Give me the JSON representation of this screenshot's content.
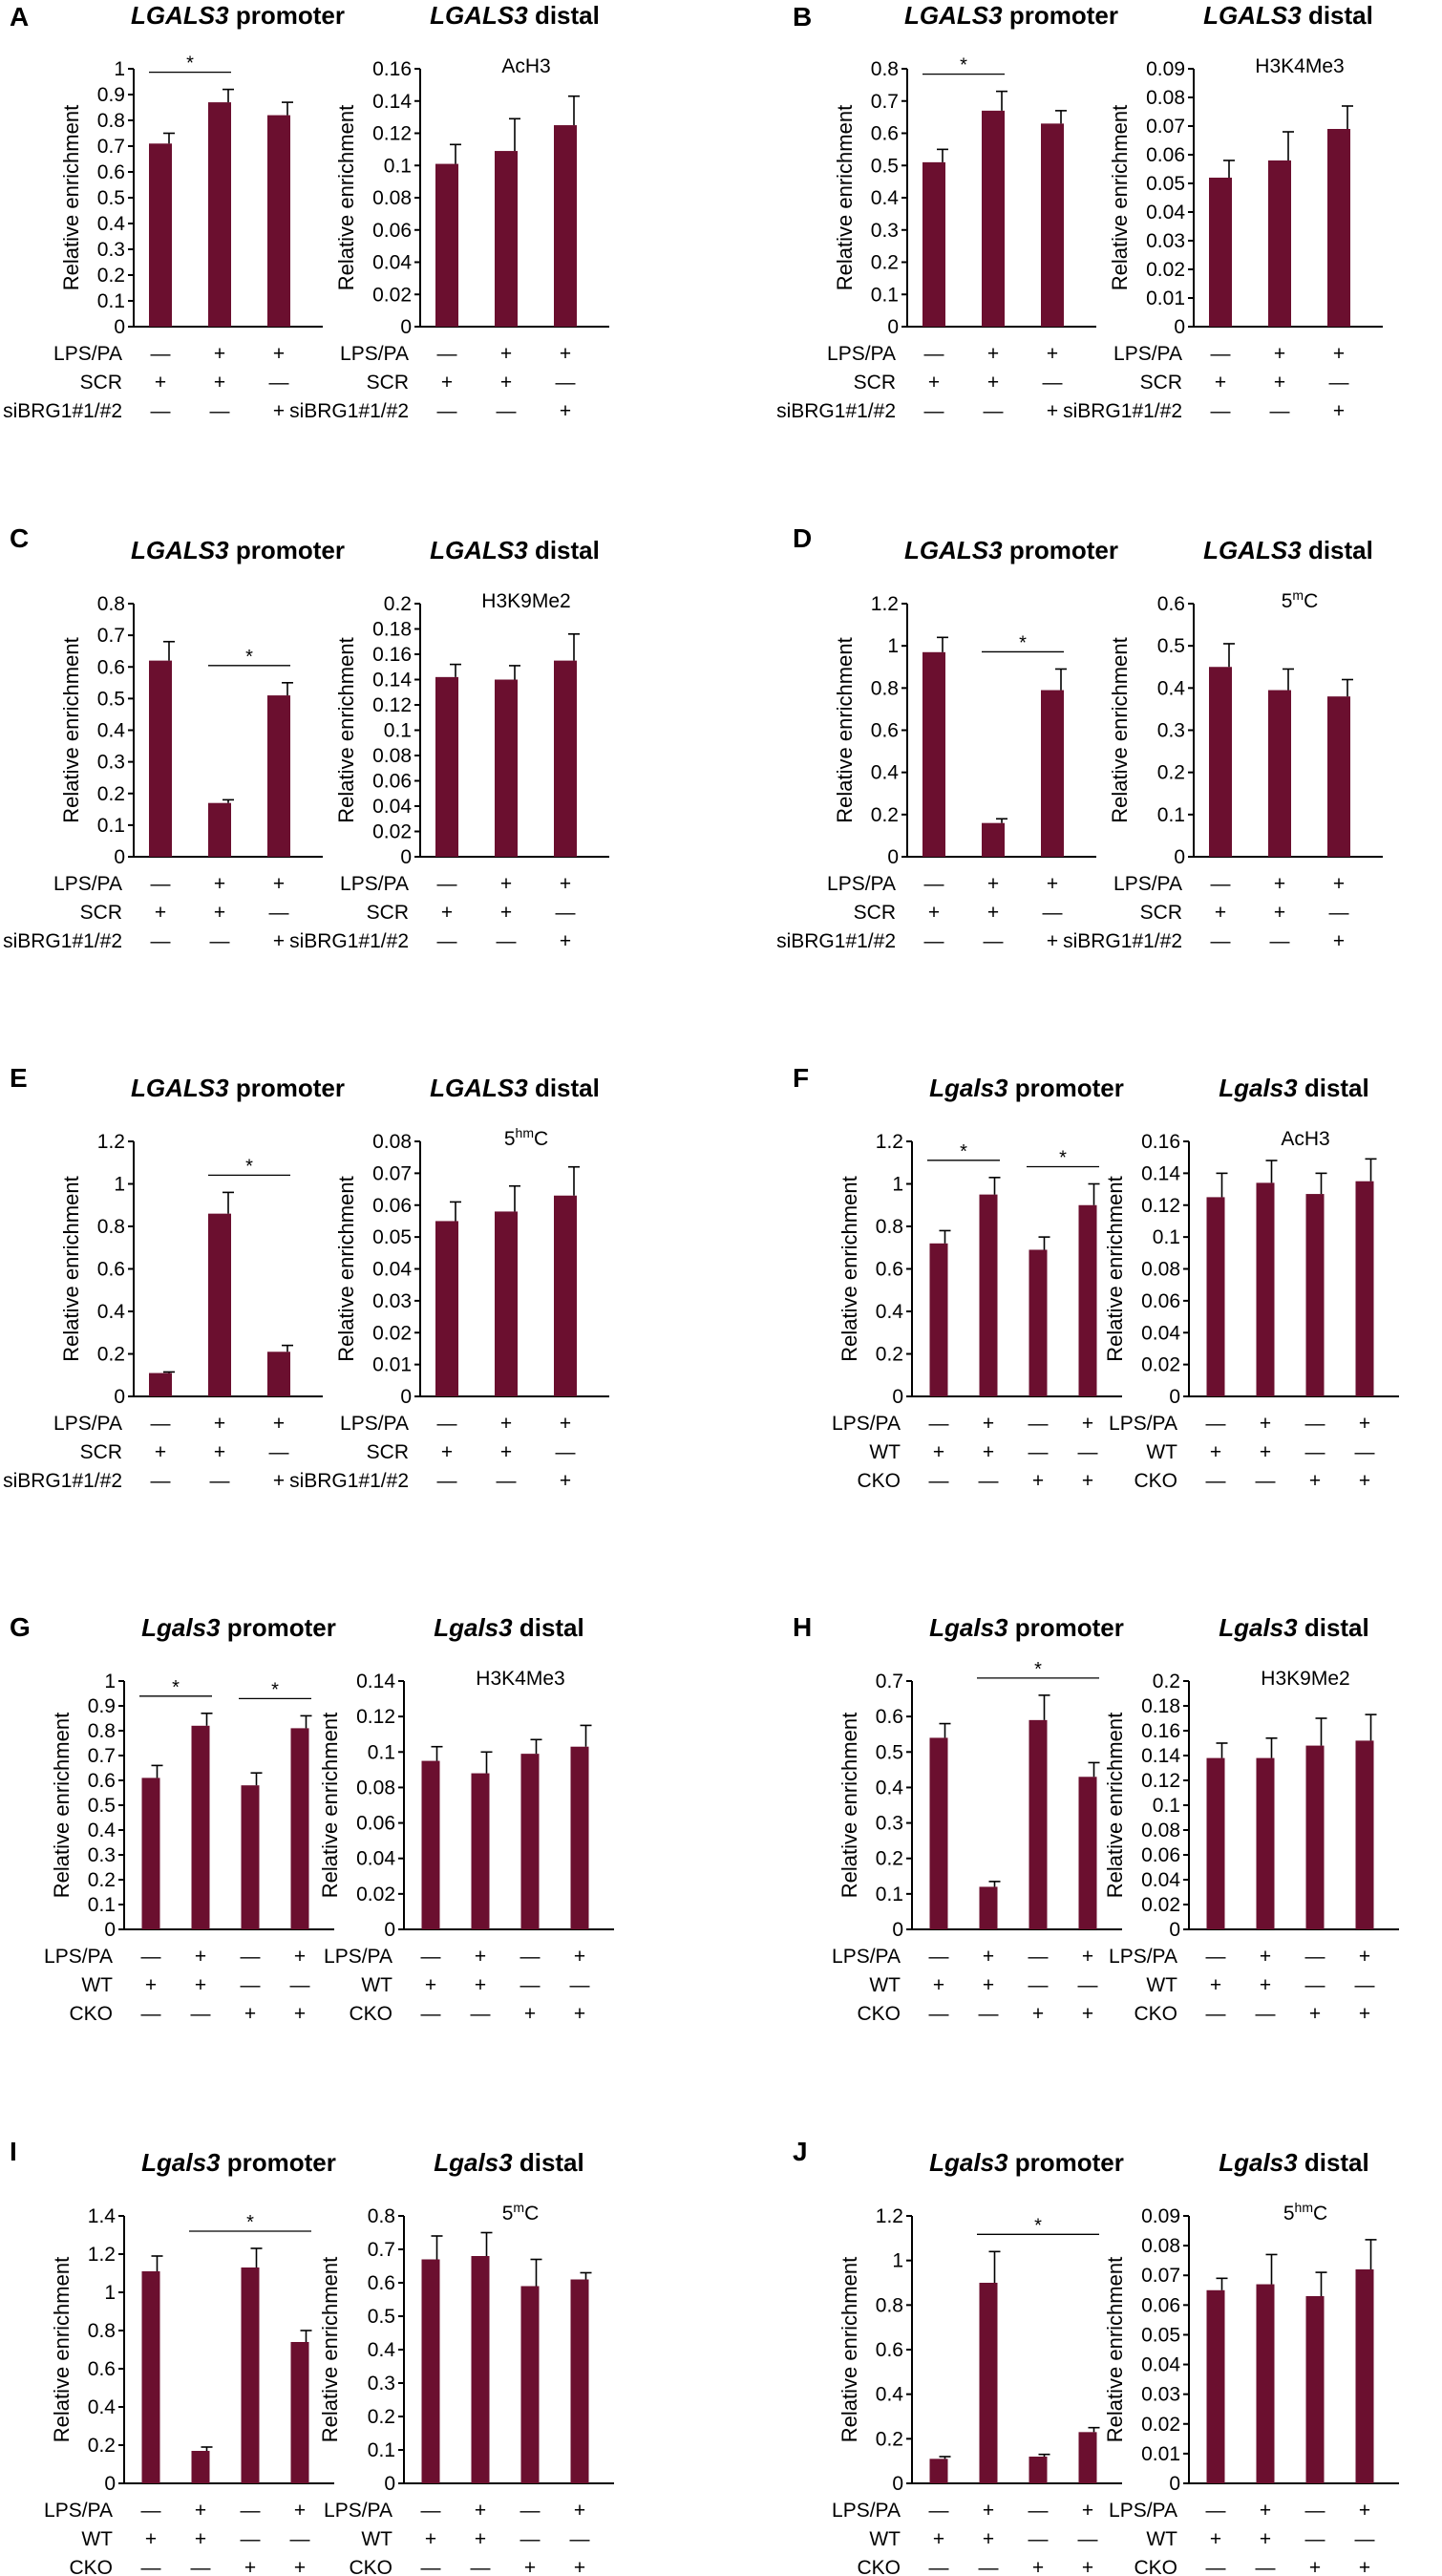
{
  "colors": {
    "bar": "#6b0f2f",
    "axis": "#000000"
  },
  "conditions": {
    "three": {
      "rows": [
        "LPS/PA",
        "SCR",
        "siBRG1#1/#2"
      ],
      "marks": [
        [
          "—",
          "+",
          "+"
        ],
        [
          "+",
          "+",
          "—"
        ],
        [
          "—",
          "—",
          "+"
        ]
      ]
    },
    "four": {
      "rows": [
        "LPS/PA",
        "WT",
        "CKO"
      ],
      "marks": [
        [
          "—",
          "+",
          "—",
          "+"
        ],
        [
          "+",
          "+",
          "—",
          "—"
        ],
        [
          "—",
          "—",
          "+",
          "+"
        ]
      ]
    }
  },
  "chart_data": [
    {
      "panel": "A",
      "type": "bar",
      "gene": "LGALS3",
      "region": "promoter",
      "ylabel": "Relative enrichment",
      "conditions": "three",
      "values": [
        0.71,
        0.87,
        0.82
      ],
      "errors": [
        0.04,
        0.05,
        0.05
      ],
      "ylim": [
        0,
        1
      ],
      "yticks": [
        "0",
        "0.1",
        "0.2",
        "0.3",
        "0.4",
        "0.5",
        "0.6",
        "0.7",
        "0.8",
        "0.9",
        "1"
      ],
      "sig": [
        [
          0,
          1
        ]
      ]
    },
    {
      "panel": "",
      "type": "bar",
      "gene": "LGALS3",
      "region": "distal",
      "ylabel": "Relative enrichment",
      "annotation": "AcH3",
      "conditions": "three",
      "values": [
        0.101,
        0.109,
        0.125
      ],
      "errors": [
        0.012,
        0.02,
        0.018
      ],
      "ylim": [
        0,
        0.16
      ],
      "yticks": [
        "0",
        "0.02",
        "0.04",
        "0.06",
        "0.08",
        "0.1",
        "0.12",
        "0.14",
        "0.16"
      ],
      "sig": []
    },
    {
      "panel": "B",
      "type": "bar",
      "gene": "LGALS3",
      "region": "promoter",
      "ylabel": "Relative enrichment",
      "conditions": "three",
      "values": [
        0.51,
        0.67,
        0.63
      ],
      "errors": [
        0.04,
        0.06,
        0.04
      ],
      "ylim": [
        0,
        0.8
      ],
      "yticks": [
        "0",
        "0.1",
        "0.2",
        "0.3",
        "0.4",
        "0.5",
        "0.6",
        "0.7",
        "0.8"
      ],
      "sig": [
        [
          0,
          1
        ]
      ]
    },
    {
      "panel": "",
      "type": "bar",
      "gene": "LGALS3",
      "region": "distal",
      "ylabel": "Relative enrichment",
      "annotation": "H3K4Me3",
      "conditions": "three",
      "values": [
        0.052,
        0.058,
        0.069
      ],
      "errors": [
        0.006,
        0.01,
        0.008
      ],
      "ylim": [
        0,
        0.09
      ],
      "yticks": [
        "0",
        "0.01",
        "0.02",
        "0.03",
        "0.04",
        "0.05",
        "0.06",
        "0.07",
        "0.08",
        "0.09"
      ],
      "sig": []
    },
    {
      "panel": "C",
      "type": "bar",
      "gene": "LGALS3",
      "region": "promoter",
      "ylabel": "Relative enrichment",
      "conditions": "three",
      "values": [
        0.62,
        0.17,
        0.51
      ],
      "errors": [
        0.06,
        0.01,
        0.04
      ],
      "ylim": [
        0,
        0.8
      ],
      "yticks": [
        "0",
        "0.1",
        "0.2",
        "0.3",
        "0.4",
        "0.5",
        "0.6",
        "0.7",
        "0.8"
      ],
      "sig": [
        [
          1,
          2
        ]
      ]
    },
    {
      "panel": "",
      "type": "bar",
      "gene": "LGALS3",
      "region": "distal",
      "ylabel": "Relative enrichment",
      "annotation": "H3K9Me2",
      "conditions": "three",
      "values": [
        0.142,
        0.14,
        0.155
      ],
      "errors": [
        0.01,
        0.011,
        0.021
      ],
      "ylim": [
        0,
        0.2
      ],
      "yticks": [
        "0",
        "0.02",
        "0.04",
        "0.06",
        "0.08",
        "0.1",
        "0.12",
        "0.14",
        "0.16",
        "0.18",
        "0.2"
      ],
      "sig": []
    },
    {
      "panel": "D",
      "type": "bar",
      "gene": "LGALS3",
      "region": "promoter",
      "ylabel": "Relative enrichment",
      "conditions": "three",
      "values": [
        0.97,
        0.16,
        0.79
      ],
      "errors": [
        0.07,
        0.02,
        0.1
      ],
      "ylim": [
        0,
        1.2
      ],
      "yticks": [
        "0",
        "0.2",
        "0.4",
        "0.6",
        "0.8",
        "1",
        "1.2"
      ],
      "sig": [
        [
          1,
          2
        ]
      ]
    },
    {
      "panel": "",
      "type": "bar",
      "gene": "LGALS3",
      "region": "distal",
      "ylabel": "Relative enrichment",
      "annotation_base": "5",
      "annotation_sup": "m",
      "annotation_tail": "C",
      "conditions": "three",
      "values": [
        0.45,
        0.395,
        0.38
      ],
      "errors": [
        0.055,
        0.05,
        0.04
      ],
      "ylim": [
        0,
        0.6
      ],
      "yticks": [
        "0",
        "0.1",
        "0.2",
        "0.3",
        "0.4",
        "0.5",
        "0.6"
      ],
      "sig": []
    },
    {
      "panel": "E",
      "type": "bar",
      "gene": "LGALS3",
      "region": "promoter",
      "ylabel": "Relative enrichment",
      "conditions": "three",
      "values": [
        0.11,
        0.86,
        0.21
      ],
      "errors": [
        0.005,
        0.1,
        0.03
      ],
      "ylim": [
        0,
        1.2
      ],
      "yticks": [
        "0",
        "0.2",
        "0.4",
        "0.6",
        "0.8",
        "1",
        "1.2"
      ],
      "sig": [
        [
          1,
          2
        ]
      ]
    },
    {
      "panel": "",
      "type": "bar",
      "gene": "LGALS3",
      "region": "distal",
      "ylabel": "Relative enrichment",
      "annotation_base": "5",
      "annotation_sup": "hm",
      "annotation_tail": "C",
      "conditions": "three",
      "values": [
        0.055,
        0.058,
        0.063
      ],
      "errors": [
        0.006,
        0.008,
        0.009
      ],
      "ylim": [
        0,
        0.08
      ],
      "yticks": [
        "0",
        "0.01",
        "0.02",
        "0.03",
        "0.04",
        "0.05",
        "0.06",
        "0.07",
        "0.08"
      ],
      "sig": []
    },
    {
      "panel": "F",
      "type": "bar",
      "gene": "Lgals3",
      "region": "promoter",
      "ylabel": "Relative enrichment",
      "conditions": "four",
      "values": [
        0.72,
        0.95,
        0.69,
        0.9
      ],
      "errors": [
        0.06,
        0.08,
        0.06,
        0.1
      ],
      "ylim": [
        0,
        1.2
      ],
      "yticks": [
        "0",
        "0.2",
        "0.4",
        "0.6",
        "0.8",
        "1",
        "1.2"
      ],
      "sig": [
        [
          0,
          1
        ],
        [
          2,
          3
        ]
      ]
    },
    {
      "panel": "",
      "type": "bar",
      "gene": "Lgals3",
      "region": "distal",
      "ylabel": "Relative enrichment",
      "annotation": "AcH3",
      "conditions": "four",
      "values": [
        0.125,
        0.134,
        0.127,
        0.135
      ],
      "errors": [
        0.015,
        0.014,
        0.013,
        0.014
      ],
      "ylim": [
        0,
        0.16
      ],
      "yticks": [
        "0",
        "0.02",
        "0.04",
        "0.06",
        "0.08",
        "0.1",
        "0.12",
        "0.14",
        "0.16"
      ],
      "sig": []
    },
    {
      "panel": "G",
      "type": "bar",
      "gene": "Lgals3",
      "region": "promoter",
      "ylabel": "Relative enrichment",
      "conditions": "four",
      "values": [
        0.61,
        0.82,
        0.58,
        0.81
      ],
      "errors": [
        0.05,
        0.05,
        0.05,
        0.05
      ],
      "ylim": [
        0,
        1
      ],
      "yticks": [
        "0",
        "0.1",
        "0.2",
        "0.3",
        "0.4",
        "0.5",
        "0.6",
        "0.7",
        "0.8",
        "0.9",
        "1"
      ],
      "sig": [
        [
          0,
          1
        ],
        [
          2,
          3
        ]
      ]
    },
    {
      "panel": "",
      "type": "bar",
      "gene": "Lgals3",
      "region": "distal",
      "ylabel": "Relative enrichment",
      "annotation": "H3K4Me3",
      "conditions": "four",
      "values": [
        0.095,
        0.088,
        0.099,
        0.103
      ],
      "errors": [
        0.008,
        0.012,
        0.008,
        0.012
      ],
      "ylim": [
        0,
        0.14
      ],
      "yticks": [
        "0",
        "0.02",
        "0.04",
        "0.06",
        "0.08",
        "0.1",
        "0.12",
        "0.14"
      ],
      "sig": []
    },
    {
      "panel": "H",
      "type": "bar",
      "gene": "Lgals3",
      "region": "promoter",
      "ylabel": "Relative enrichment",
      "conditions": "four",
      "values": [
        0.54,
        0.12,
        0.59,
        0.43
      ],
      "errors": [
        0.04,
        0.015,
        0.07,
        0.04
      ],
      "ylim": [
        0,
        0.7
      ],
      "yticks": [
        "0",
        "0.1",
        "0.2",
        "0.3",
        "0.4",
        "0.5",
        "0.6",
        "0.7"
      ],
      "sig": [
        [
          1,
          3
        ]
      ]
    },
    {
      "panel": "",
      "type": "bar",
      "gene": "Lgals3",
      "region": "distal",
      "ylabel": "Relative enrichment",
      "annotation": "H3K9Me2",
      "conditions": "four",
      "values": [
        0.138,
        0.138,
        0.148,
        0.152
      ],
      "errors": [
        0.012,
        0.016,
        0.022,
        0.021
      ],
      "ylim": [
        0,
        0.2
      ],
      "yticks": [
        "0",
        "0.02",
        "0.04",
        "0.06",
        "0.08",
        "0.1",
        "0.12",
        "0.14",
        "0.16",
        "0.18",
        "0.2"
      ],
      "sig": []
    },
    {
      "panel": "I",
      "type": "bar",
      "gene": "Lgals3",
      "region": "promoter",
      "ylabel": "Relative enrichment",
      "conditions": "four",
      "values": [
        1.11,
        0.17,
        1.13,
        0.74
      ],
      "errors": [
        0.08,
        0.02,
        0.1,
        0.06
      ],
      "ylim": [
        0,
        1.4
      ],
      "yticks": [
        "0",
        "0.2",
        "0.4",
        "0.6",
        "0.8",
        "1",
        "1.2",
        "1.4"
      ],
      "sig": [
        [
          1,
          3
        ]
      ]
    },
    {
      "panel": "",
      "type": "bar",
      "gene": "Lgals3",
      "region": "distal",
      "ylabel": "Relative enrichment",
      "annotation_base": "5",
      "annotation_sup": "m",
      "annotation_tail": "C",
      "conditions": "four",
      "values": [
        0.67,
        0.68,
        0.59,
        0.61
      ],
      "errors": [
        0.07,
        0.07,
        0.08,
        0.02
      ],
      "ylim": [
        0,
        0.8
      ],
      "yticks": [
        "0",
        "0.1",
        "0.2",
        "0.3",
        "0.4",
        "0.5",
        "0.6",
        "0.7",
        "0.8"
      ],
      "sig": []
    },
    {
      "panel": "J",
      "type": "bar",
      "gene": "Lgals3",
      "region": "promoter",
      "ylabel": "Relative enrichment",
      "conditions": "four",
      "values": [
        0.11,
        0.9,
        0.12,
        0.23
      ],
      "errors": [
        0.01,
        0.14,
        0.01,
        0.02
      ],
      "ylim": [
        0,
        1.2
      ],
      "yticks": [
        "0",
        "0.2",
        "0.4",
        "0.6",
        "0.8",
        "1",
        "1.2"
      ],
      "sig": [
        [
          1,
          3
        ]
      ]
    },
    {
      "panel": "",
      "type": "bar",
      "gene": "Lgals3",
      "region": "distal",
      "ylabel": "Relative enrichment",
      "annotation_base": "5",
      "annotation_sup": "hm",
      "annotation_tail": "C",
      "conditions": "four",
      "values": [
        0.065,
        0.067,
        0.063,
        0.072
      ],
      "errors": [
        0.004,
        0.01,
        0.008,
        0.01
      ],
      "ylim": [
        0,
        0.09
      ],
      "yticks": [
        "0",
        "0.01",
        "0.02",
        "0.03",
        "0.04",
        "0.05",
        "0.06",
        "0.07",
        "0.08",
        "0.09"
      ],
      "sig": []
    }
  ],
  "sig_mark": "*"
}
